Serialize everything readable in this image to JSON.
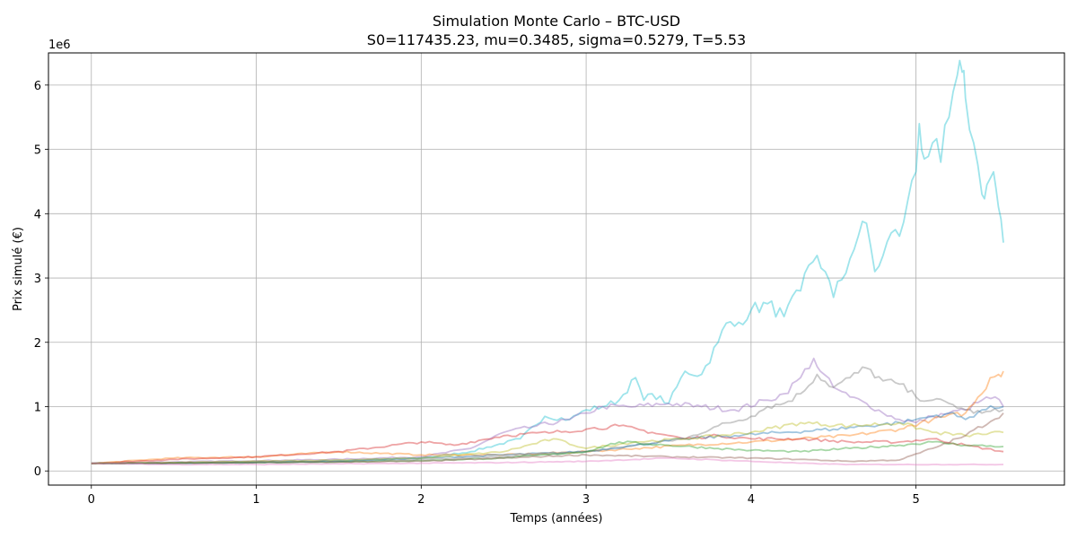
{
  "chart_data": {
    "type": "line",
    "title": "Simulation Monte Carlo – BTC-USD",
    "subtitle": "S0=117435.23, mu=0.3485, sigma=0.5279, T=5.53",
    "xlabel": "Temps (années)",
    "ylabel": "Prix simulé (€)",
    "y_offset_label": "1e6",
    "xlim": [
      -0.26,
      5.9
    ],
    "ylim": [
      -0.22,
      6.5
    ],
    "x_ticks": [
      0,
      1,
      2,
      3,
      4,
      5
    ],
    "x_tick_labels": [
      "0",
      "1",
      "2",
      "3",
      "4",
      "5"
    ],
    "y_ticks": [
      0,
      1,
      2,
      3,
      4,
      5,
      6
    ],
    "y_tick_labels": [
      "0",
      "1",
      "2",
      "3",
      "4",
      "5",
      "6"
    ],
    "y_unit": "millions",
    "grid": true,
    "legend": "none",
    "series": [
      {
        "color": "#17becf",
        "x": [
          0,
          0.5,
          1,
          1.5,
          2,
          2.3,
          2.6,
          2.75,
          2.9,
          3.0,
          3.1,
          3.2,
          3.3,
          3.35,
          3.4,
          3.5,
          3.6,
          3.7,
          3.8,
          3.85,
          3.9,
          4.0,
          4.1,
          4.2,
          4.3,
          4.35,
          4.4,
          4.45,
          4.5,
          4.6,
          4.65,
          4.7,
          4.75,
          4.8,
          4.85,
          4.9,
          4.95,
          5.0,
          5.02,
          5.05,
          5.1,
          5.15,
          5.2,
          5.25,
          5.28,
          5.3,
          5.35,
          5.4,
          5.43,
          5.47,
          5.5,
          5.53
        ],
        "y": [
          0.117,
          0.12,
          0.13,
          0.15,
          0.2,
          0.3,
          0.5,
          0.85,
          0.8,
          0.95,
          1.0,
          1.1,
          1.45,
          1.1,
          1.2,
          1.05,
          1.55,
          1.5,
          2.0,
          2.3,
          2.25,
          2.5,
          2.6,
          2.4,
          2.8,
          3.2,
          3.35,
          3.1,
          2.7,
          3.3,
          3.65,
          3.85,
          3.1,
          3.35,
          3.7,
          3.65,
          4.2,
          4.65,
          5.4,
          4.85,
          5.1,
          4.8,
          5.5,
          6.15,
          6.2,
          5.8,
          5.1,
          4.3,
          4.45,
          4.65,
          4.1,
          3.55
        ]
      },
      {
        "color": "#9467bd",
        "x": [
          0,
          0.5,
          1,
          1.5,
          2,
          2.3,
          2.5,
          2.7,
          2.9,
          3.0,
          3.1,
          3.3,
          3.5,
          3.7,
          3.9,
          4.1,
          4.2,
          4.3,
          4.38,
          4.42,
          4.5,
          4.6,
          4.7,
          4.8,
          4.9,
          5.0,
          5.1,
          5.2,
          5.3,
          5.4,
          5.48,
          5.53
        ],
        "y": [
          0.117,
          0.14,
          0.16,
          0.18,
          0.22,
          0.35,
          0.6,
          0.7,
          0.8,
          0.9,
          1.0,
          1.0,
          1.05,
          1.0,
          0.95,
          1.1,
          1.2,
          1.45,
          1.75,
          1.55,
          1.3,
          1.15,
          1.05,
          0.9,
          0.8,
          0.75,
          0.85,
          0.9,
          0.95,
          1.1,
          1.15,
          1.0
        ]
      },
      {
        "color": "#7f7f7f",
        "x": [
          0,
          0.5,
          1,
          1.5,
          2,
          2.5,
          3,
          3.3,
          3.6,
          3.8,
          4.0,
          4.1,
          4.2,
          4.3,
          4.4,
          4.5,
          4.6,
          4.7,
          4.8,
          4.9,
          5.0,
          5.1,
          5.2,
          5.3,
          5.4,
          5.53
        ],
        "y": [
          0.117,
          0.13,
          0.14,
          0.15,
          0.18,
          0.22,
          0.3,
          0.4,
          0.5,
          0.7,
          0.85,
          1.0,
          1.05,
          1.2,
          1.5,
          1.3,
          1.45,
          1.6,
          1.4,
          1.35,
          1.15,
          1.1,
          1.05,
          0.95,
          0.9,
          0.95
        ]
      },
      {
        "color": "#ff7f0e",
        "x": [
          0,
          0.5,
          1,
          1.5,
          2,
          2.5,
          3,
          3.3,
          3.6,
          4.0,
          4.3,
          4.6,
          4.9,
          5.1,
          5.3,
          5.4,
          5.45,
          5.5,
          5.53
        ],
        "y": [
          0.117,
          0.2,
          0.22,
          0.3,
          0.25,
          0.25,
          0.3,
          0.35,
          0.4,
          0.45,
          0.5,
          0.55,
          0.65,
          0.8,
          0.9,
          1.2,
          1.45,
          1.5,
          1.55
        ]
      },
      {
        "color": "#d62728",
        "x": [
          0,
          0.5,
          1,
          1.5,
          2,
          2.2,
          2.5,
          2.8,
          3.0,
          3.2,
          3.4,
          3.6,
          3.8,
          4.0,
          4.3,
          4.6,
          4.9,
          5.1,
          5.3,
          5.53
        ],
        "y": [
          0.117,
          0.18,
          0.22,
          0.3,
          0.45,
          0.4,
          0.55,
          0.6,
          0.65,
          0.7,
          0.6,
          0.5,
          0.55,
          0.5,
          0.5,
          0.45,
          0.45,
          0.5,
          0.4,
          0.3
        ]
      },
      {
        "color": "#1f77b4",
        "x": [
          0,
          0.5,
          1,
          1.5,
          2,
          2.5,
          3,
          3.3,
          3.6,
          3.9,
          4.2,
          4.5,
          4.7,
          4.9,
          5.0,
          5.1,
          5.2,
          5.3,
          5.4,
          5.53
        ],
        "y": [
          0.117,
          0.12,
          0.14,
          0.16,
          0.2,
          0.25,
          0.3,
          0.4,
          0.5,
          0.55,
          0.6,
          0.65,
          0.7,
          0.75,
          0.8,
          0.85,
          0.9,
          0.8,
          0.95,
          1.0
        ]
      },
      {
        "color": "#bcbd22",
        "x": [
          0,
          0.5,
          1,
          1.5,
          2,
          2.5,
          2.8,
          3.0,
          3.3,
          3.6,
          4.0,
          4.3,
          4.6,
          4.9,
          5.1,
          5.3,
          5.53
        ],
        "y": [
          0.117,
          0.13,
          0.15,
          0.17,
          0.2,
          0.3,
          0.5,
          0.35,
          0.45,
          0.5,
          0.6,
          0.75,
          0.7,
          0.75,
          0.6,
          0.55,
          0.6
        ]
      },
      {
        "color": "#2ca02c",
        "x": [
          0,
          0.5,
          1,
          1.5,
          2,
          2.5,
          3,
          3.2,
          3.5,
          3.8,
          4.0,
          4.3,
          4.6,
          4.9,
          5.1,
          5.3,
          5.53
        ],
        "y": [
          0.117,
          0.12,
          0.13,
          0.14,
          0.16,
          0.2,
          0.3,
          0.45,
          0.4,
          0.35,
          0.32,
          0.3,
          0.35,
          0.4,
          0.45,
          0.4,
          0.38
        ]
      },
      {
        "color": "#8c564b",
        "x": [
          0,
          0.5,
          1,
          1.5,
          2,
          2.5,
          3,
          3.5,
          4.0,
          4.3,
          4.6,
          4.9,
          5.1,
          5.3,
          5.53
        ],
        "y": [
          0.117,
          0.12,
          0.13,
          0.14,
          0.15,
          0.2,
          0.25,
          0.22,
          0.2,
          0.18,
          0.15,
          0.17,
          0.35,
          0.55,
          0.9
        ]
      },
      {
        "color": "#e377c2",
        "x": [
          0,
          0.5,
          1,
          1.5,
          2,
          2.5,
          3,
          3.5,
          4.0,
          4.3,
          4.6,
          4.9,
          5.1,
          5.3,
          5.53
        ],
        "y": [
          0.117,
          0.1,
          0.1,
          0.11,
          0.12,
          0.13,
          0.15,
          0.2,
          0.15,
          0.12,
          0.1,
          0.1,
          0.1,
          0.1,
          0.1
        ]
      }
    ]
  }
}
